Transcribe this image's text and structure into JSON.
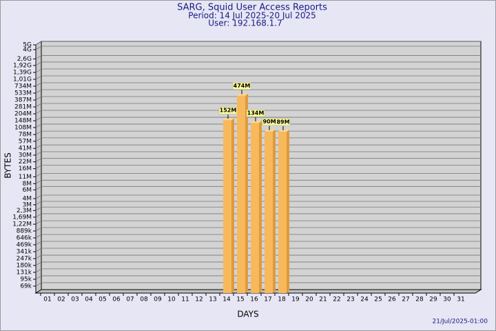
{
  "chart_data": {
    "type": "bar",
    "log_scale": true,
    "grid": true,
    "title": "SARG, Squid User Access Reports",
    "subtitle": [
      "Period: 14 Jul 2025-20 Jul 2025",
      "User: 192.168.1.7"
    ],
    "x_label": "DAYS",
    "y_label": "BYTES",
    "footnote": "21/Jul/2025-01:00",
    "color": "#f7b95c",
    "categories": [
      "01",
      "02",
      "03",
      "04",
      "05",
      "06",
      "07",
      "08",
      "09",
      "10",
      "11",
      "12",
      "13",
      "14",
      "15",
      "16",
      "17",
      "18",
      "19",
      "20",
      "21",
      "22",
      "23",
      "24",
      "25",
      "26",
      "27",
      "28",
      "29",
      "30",
      "31"
    ],
    "values": [
      null,
      null,
      null,
      null,
      null,
      null,
      null,
      null,
      null,
      null,
      null,
      null,
      null,
      152000000,
      474000000,
      134000000,
      90000000,
      89000000,
      null,
      null,
      null,
      null,
      null,
      null,
      null,
      null,
      null,
      null,
      null,
      null,
      null
    ],
    "value_labels": [
      null,
      null,
      null,
      null,
      null,
      null,
      null,
      null,
      null,
      null,
      null,
      null,
      null,
      "152M",
      "474M",
      "134M",
      "90M",
      "89M",
      null,
      null,
      null,
      null,
      null,
      null,
      null,
      null,
      null,
      null,
      null,
      null,
      null
    ],
    "ylim": [
      50000,
      5000000000
    ],
    "yticks": [
      {
        "value": 5000000000,
        "label": "5G"
      },
      {
        "value": 4000000000,
        "label": "4G"
      },
      {
        "value": 2600000000,
        "label": "2,6G"
      },
      {
        "value": 1920000000,
        "label": "1,92G"
      },
      {
        "value": 1390000000,
        "label": "1,39G"
      },
      {
        "value": 1010000000,
        "label": "1,01G"
      },
      {
        "value": 734000000,
        "label": "734M"
      },
      {
        "value": 533000000,
        "label": "533M"
      },
      {
        "value": 387000000,
        "label": "387M"
      },
      {
        "value": 281000000,
        "label": "281M"
      },
      {
        "value": 204000000,
        "label": "204M"
      },
      {
        "value": 148000000,
        "label": "148M"
      },
      {
        "value": 108000000,
        "label": "108M"
      },
      {
        "value": 78000000,
        "label": "78M"
      },
      {
        "value": 57000000,
        "label": "57M"
      },
      {
        "value": 41000000,
        "label": "41M"
      },
      {
        "value": 30000000,
        "label": "30M"
      },
      {
        "value": 22000000,
        "label": "22M"
      },
      {
        "value": 16000000,
        "label": "16M"
      },
      {
        "value": 11000000,
        "label": "11M"
      },
      {
        "value": 8000000,
        "label": "8M"
      },
      {
        "value": 6000000,
        "label": "6M"
      },
      {
        "value": 4000000,
        "label": "4M"
      },
      {
        "value": 3000000,
        "label": "3M"
      },
      {
        "value": 2300000,
        "label": "2,3M"
      },
      {
        "value": 1690000,
        "label": "1,69M"
      },
      {
        "value": 1220000,
        "label": "1,22M"
      },
      {
        "value": 889000,
        "label": "889k"
      },
      {
        "value": 646000,
        "label": "646k"
      },
      {
        "value": 469000,
        "label": "469k"
      },
      {
        "value": 341000,
        "label": "341k"
      },
      {
        "value": 247000,
        "label": "247k"
      },
      {
        "value": 180000,
        "label": "180k"
      },
      {
        "value": 131000,
        "label": "131k"
      },
      {
        "value": 95000,
        "label": "95k"
      },
      {
        "value": 69000,
        "label": "69k"
      }
    ]
  }
}
